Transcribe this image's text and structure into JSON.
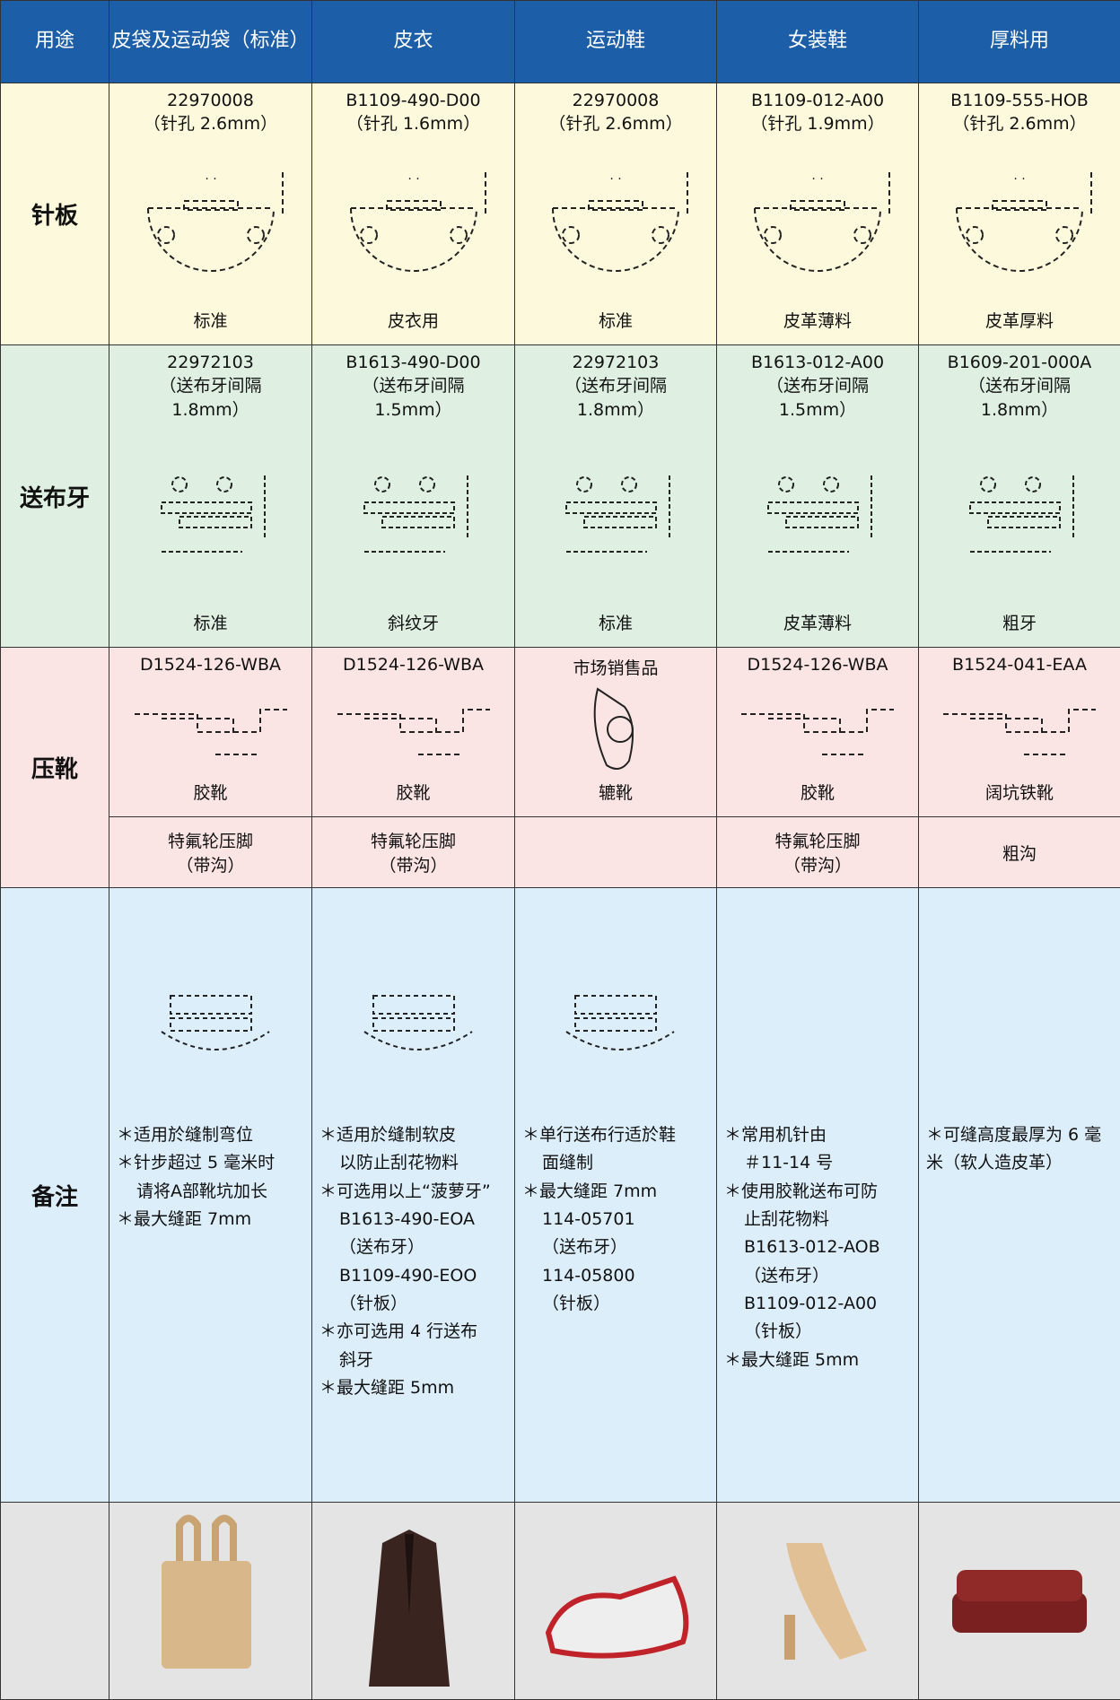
{
  "header": {
    "columns": [
      "用途",
      "皮袋及运动袋（标准）",
      "皮衣",
      "运动鞋",
      "女装鞋",
      "厚料用"
    ]
  },
  "needle_plate": {
    "label": "针板",
    "cells": [
      {
        "part": "22970008",
        "note": [
          "（针孔 2.6mm）"
        ],
        "caption": "标准"
      },
      {
        "part": "B1109-490-D00",
        "note": [
          "（针孔 1.6mm）"
        ],
        "caption": "皮衣用"
      },
      {
        "part": "22970008",
        "note": [
          "（针孔 2.6mm）"
        ],
        "caption": "标准"
      },
      {
        "part": "B1109-012-A00",
        "note": [
          "（针孔 1.9mm）"
        ],
        "caption": "皮革薄料"
      },
      {
        "part": "B1109-555-HOB",
        "note": [
          "（针孔 2.6mm）"
        ],
        "caption": "皮革厚料"
      }
    ]
  },
  "feed_dog": {
    "label": "送布牙",
    "cells": [
      {
        "part": "22972103",
        "note": [
          "（送布牙间隔",
          "1.8mm）"
        ],
        "caption": "标准"
      },
      {
        "part": "B1613-490-D00",
        "note": [
          "（送布牙间隔",
          "1.5mm）"
        ],
        "caption": "斜纹牙"
      },
      {
        "part": "22972103",
        "note": [
          "（送布牙间隔",
          "1.8mm）"
        ],
        "caption": "标准"
      },
      {
        "part": "B1613-012-A00",
        "note": [
          "（送布牙间隔",
          "1.5mm）"
        ],
        "caption": "皮革薄料"
      },
      {
        "part": "B1609-201-000A",
        "note": [
          "（送布牙间隔",
          "1.8mm）"
        ],
        "caption": "粗牙"
      }
    ]
  },
  "presser_foot": {
    "label": "压靴",
    "cells": [
      {
        "part": "D1524-126-WBA",
        "caption": "胶靴",
        "sub": [
          "特氟轮压脚",
          "（带沟）"
        ]
      },
      {
        "part": "D1524-126-WBA",
        "caption": "胶靴",
        "sub": [
          "特氟轮压脚",
          "（带沟）"
        ]
      },
      {
        "part": "市场销售品",
        "caption": "辘靴",
        "sub": null
      },
      {
        "part": "D1524-126-WBA",
        "caption": "胶靴",
        "sub": [
          "特氟轮压脚",
          "（带沟）"
        ]
      },
      {
        "part": "B1524-041-EAA",
        "caption": "阔坑铁靴",
        "sub": [
          "粗沟"
        ]
      }
    ]
  },
  "remarks": {
    "label": "备注",
    "cells": [
      [
        [
          "＊适用於缝制弯位"
        ],
        [
          "＊针步超过 5 毫米时",
          "请将A部靴坑加长"
        ],
        [
          "＊最大缝距 7mm"
        ]
      ],
      [
        [
          "＊适用於缝制软皮",
          "以防止刮花物料"
        ],
        [
          "＊可选用以上“菠萝牙”",
          "B1613-490-EOA",
          "（送布牙）",
          "B1109-490-EOO",
          "（针板）"
        ],
        [
          "＊亦可选用 4 行送布",
          "斜牙"
        ],
        [
          "＊最大缝距 5mm"
        ]
      ],
      [
        [
          "＊单行送布行适於鞋",
          "面缝制"
        ],
        [
          "＊最大缝距 7mm",
          "114-05701",
          "（送布牙）",
          "114-05800",
          "（针板）"
        ]
      ],
      [
        [
          "＊常用机针由",
          "＃11-14 号"
        ],
        [
          "＊使用胶靴送布可防",
          "止刮花物料",
          "B1613-012-AOB",
          "（送布牙）",
          "B1109-012-A00",
          "（针板）"
        ],
        [
          "＊最大缝距 5mm"
        ]
      ],
      [
        [
          "＊可缝高度最厚为 6 毫米（软人造皮革）"
        ]
      ]
    ]
  },
  "product_count": 5
}
